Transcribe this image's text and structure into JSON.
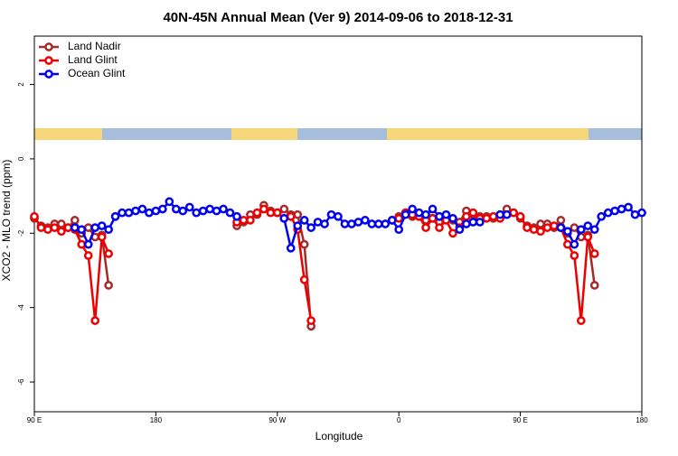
{
  "chart_data": {
    "type": "line",
    "title": "40N-45N Annual Mean (Ver 9)   2014-09-06 to 2018-12-31",
    "x_label": "Longitude",
    "y_label": "XCO2 - MLO trend (ppm)",
    "x": [
      90,
      95,
      100,
      105,
      110,
      115,
      120,
      125,
      130,
      135,
      140,
      145,
      150,
      155,
      160,
      165,
      170,
      175,
      180,
      185,
      190,
      195,
      200,
      205,
      210,
      215,
      220,
      225,
      230,
      235,
      240,
      245,
      250,
      255,
      260,
      265,
      270,
      275,
      280,
      285,
      290,
      295,
      300,
      305,
      310,
      315,
      320,
      325,
      330,
      335,
      340,
      345,
      350,
      355,
      360,
      365,
      370,
      375,
      380,
      385,
      390,
      395,
      400,
      405,
      410,
      415,
      420,
      425,
      430,
      435,
      440,
      445,
      450,
      455,
      460,
      465,
      470,
      475,
      480,
      485,
      490,
      495,
      500,
      505,
      510,
      515,
      520,
      525,
      530,
      535,
      540
    ],
    "xlim": [
      90,
      540
    ],
    "xticks": [
      {
        "value": 90,
        "label": "90 E"
      },
      180,
      {
        "value": 270,
        "label": "90 W"
      },
      {
        "value": 360,
        "label": "0"
      },
      {
        "value": 450,
        "label": "90 E"
      },
      {
        "value": 540,
        "label": "180"
      }
    ],
    "ylim": [
      -6.8,
      3.3
    ],
    "yticks": [
      -6,
      -4,
      -2,
      0,
      2
    ],
    "legend": "top-left",
    "series": [
      {
        "name": "Land Nadir",
        "color": "#a52a2a",
        "values": [
          -1.6,
          -1.8,
          -1.85,
          -1.75,
          -1.75,
          -1.85,
          -1.65,
          -2.0,
          -1.85,
          -2.1,
          -2.05,
          -3.4,
          null,
          null,
          null,
          null,
          null,
          null,
          null,
          null,
          null,
          null,
          null,
          null,
          null,
          null,
          null,
          null,
          null,
          null,
          -1.8,
          -1.7,
          -1.5,
          -1.5,
          -1.25,
          -1.4,
          -1.45,
          -1.35,
          -1.5,
          -1.5,
          -2.3,
          -4.5,
          null,
          null,
          null,
          null,
          null,
          null,
          null,
          null,
          null,
          null,
          null,
          null,
          -1.55,
          -1.45,
          -1.55,
          -1.5,
          -1.65,
          -1.6,
          -1.7,
          -1.55,
          -1.65,
          -1.7,
          -1.4,
          -1.5,
          -1.55,
          -1.55,
          -1.6,
          -1.5,
          -1.35,
          -1.45,
          -1.6,
          -1.8,
          -1.85,
          -1.75,
          -1.75,
          -1.85,
          -1.65,
          -2.0,
          -1.85,
          -2.1,
          -2.05,
          -3.4,
          null,
          null,
          null,
          null,
          null,
          null,
          null
        ]
      },
      {
        "name": "Land Glint",
        "color": "#ee0000",
        "values": [
          -1.55,
          -1.85,
          -1.9,
          -1.85,
          -1.95,
          -1.85,
          -1.9,
          -2.3,
          -2.6,
          -4.35,
          -2.1,
          -2.55,
          null,
          null,
          null,
          null,
          null,
          null,
          null,
          null,
          null,
          null,
          null,
          null,
          null,
          null,
          null,
          null,
          null,
          null,
          -1.7,
          -1.65,
          -1.65,
          -1.45,
          -1.35,
          -1.45,
          -1.45,
          -1.6,
          -1.55,
          -1.9,
          -3.25,
          -4.35,
          null,
          null,
          null,
          null,
          null,
          null,
          null,
          null,
          null,
          null,
          null,
          -1.65,
          -1.6,
          -1.45,
          -1.5,
          -1.55,
          -1.85,
          -1.6,
          -1.85,
          -1.65,
          -2.0,
          -1.85,
          -1.55,
          -1.45,
          -1.6,
          -1.6,
          -1.55,
          -1.6,
          -1.5,
          -1.45,
          -1.55,
          -1.85,
          -1.9,
          -1.95,
          -1.85,
          -1.8,
          -1.85,
          -2.3,
          -2.6,
          -4.35,
          -2.1,
          -2.55,
          null,
          null,
          null,
          null,
          null,
          null,
          null
        ]
      },
      {
        "name": "Ocean Glint",
        "color": "#0000ee",
        "values": [
          null,
          null,
          null,
          null,
          null,
          null,
          -1.85,
          -1.9,
          -2.3,
          -1.85,
          -1.8,
          -1.9,
          -1.55,
          -1.45,
          -1.45,
          -1.4,
          -1.35,
          -1.45,
          -1.4,
          -1.35,
          -1.15,
          -1.35,
          -1.4,
          -1.3,
          -1.45,
          -1.4,
          -1.35,
          -1.4,
          -1.35,
          -1.45,
          -1.55,
          null,
          null,
          null,
          null,
          null,
          null,
          -1.6,
          -2.4,
          -1.8,
          -1.65,
          -1.85,
          -1.7,
          -1.75,
          -1.5,
          -1.55,
          -1.75,
          -1.75,
          -1.7,
          -1.65,
          -1.75,
          -1.75,
          -1.75,
          -1.65,
          -1.9,
          -1.5,
          -1.35,
          -1.45,
          -1.5,
          -1.35,
          -1.55,
          -1.5,
          -1.6,
          -1.9,
          -1.75,
          -1.7,
          -1.7,
          null,
          null,
          -1.5,
          -1.5,
          null,
          null,
          null,
          null,
          null,
          null,
          null,
          -1.85,
          -1.95,
          -2.3,
          -1.9,
          -1.8,
          -1.9,
          -1.55,
          -1.45,
          -1.4,
          -1.35,
          -1.3,
          -1.5,
          -1.45
        ]
      }
    ]
  }
}
